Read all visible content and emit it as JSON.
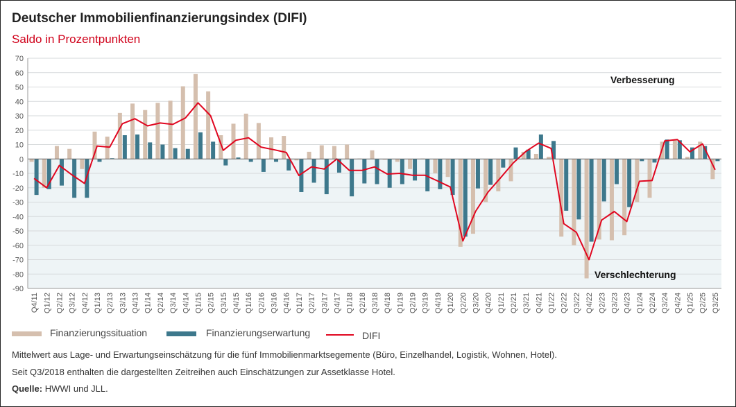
{
  "title": "Deutscher Immobilienfinanzierungsindex (DIFI)",
  "subtitle": "Saldo in Prozentpunkten",
  "colors": {
    "situation": "#d5bfae",
    "erwartung": "#3d788c",
    "difi": "#e0061f",
    "negative_area": "#eef4f6"
  },
  "chart_data": {
    "type": "bar",
    "title": "Deutscher Immobilienfinanzierungsindex (DIFI)",
    "ylabel": "Saldo in Prozentpunkten",
    "ylim": [
      -90,
      70
    ],
    "yticks": [
      70,
      60,
      50,
      40,
      30,
      20,
      10,
      0,
      -10,
      -20,
      -30,
      -40,
      -50,
      -60,
      -70,
      -80,
      -90
    ],
    "grid": true,
    "legend": "bottom",
    "categories": [
      "Q4/11",
      "Q1/12",
      "Q2/12",
      "Q3/12",
      "Q4/12",
      "Q1/13",
      "Q2/13",
      "Q3/13",
      "Q4/13",
      "Q1/14",
      "Q2/14",
      "Q3/14",
      "Q4/14",
      "Q1/15",
      "Q2/15",
      "Q3/15",
      "Q4/15",
      "Q1/16",
      "Q2/16",
      "Q3/16",
      "Q4/16",
      "Q1/17",
      "Q2/17",
      "Q3/17",
      "Q4/17",
      "Q1/18",
      "Q2/18",
      "Q3/18",
      "Q4/18",
      "Q1/19",
      "Q2/19",
      "Q3/19",
      "Q4/19",
      "Q1/20",
      "Q2/20",
      "Q3/20",
      "Q4/20",
      "Q1/21",
      "Q2/21",
      "Q3/21",
      "Q4/21",
      "Q1/22",
      "Q2/22",
      "Q3/22",
      "Q4/22",
      "Q2/23",
      "Q3/23",
      "Q4/23",
      "Q1/24",
      "Q2/24",
      "Q3/24",
      "Q4/24",
      "Q1/25",
      "Q2/25",
      "Q3/25"
    ],
    "series": [
      {
        "name": "Finanzierungssituation",
        "type": "bar",
        "values": [
          -2,
          -20,
          9,
          7,
          -7,
          19,
          15.5,
          32,
          38.5,
          34,
          39,
          40.5,
          50.5,
          59,
          47,
          16.5,
          24.5,
          31.5,
          25,
          15,
          16,
          -1,
          5,
          9.5,
          9,
          10,
          0.3,
          6,
          -0.5,
          -2,
          -7,
          0.3,
          -10,
          -12.5,
          -61,
          -52,
          -30,
          -22.5,
          -15.5,
          5,
          3.5,
          1.5,
          -54,
          -60,
          -83,
          -56,
          -56.5,
          -53,
          -30,
          -27,
          12,
          13,
          1.5,
          12,
          -14
        ]
      },
      {
        "name": "Finanzierungserwartung",
        "type": "bar",
        "values": [
          -25,
          -21,
          -18.5,
          -27,
          -27,
          -2,
          0.5,
          16.5,
          17,
          11.5,
          10,
          7.5,
          7,
          18.5,
          12,
          -4.5,
          1,
          -2,
          -9,
          -2,
          -8,
          -23,
          -16.5,
          -24.5,
          -9.5,
          -26,
          -17,
          -17.5,
          -20,
          -17.5,
          -15,
          -22.5,
          -21,
          -25,
          -54,
          -20.5,
          -18,
          -6,
          8,
          6.5,
          17,
          12.5,
          -36,
          -42,
          -57.5,
          -29.5,
          -17.5,
          -33.5,
          -1.5,
          -2.5,
          13.5,
          13,
          8,
          9,
          -1.5
        ]
      },
      {
        "name": "DIFI",
        "type": "line",
        "values": [
          -13.5,
          -20,
          -4.5,
          -11,
          -17,
          9,
          8.2,
          24.5,
          28,
          23,
          25,
          24,
          28.5,
          39,
          30,
          6,
          13,
          14.7,
          8.2,
          6.5,
          4.5,
          -11.5,
          -5.5,
          -7,
          0,
          -8,
          -8,
          -5.5,
          -10.5,
          -10,
          -11.3,
          -11.3,
          -15.3,
          -19.5,
          -57,
          -36.5,
          -23,
          -13,
          -2.7,
          5.3,
          11,
          7.3,
          -45,
          -51,
          -70,
          -42.5,
          -36.5,
          -43.5,
          -15.5,
          -15,
          12.5,
          13.5,
          5,
          10.5,
          -7.5
        ]
      }
    ],
    "annotations": [
      "Verbesserung",
      "Verschlechterung"
    ]
  },
  "legend": {
    "situation": "Finanzierungssituation",
    "erwartung": "Finanzierungserwartung",
    "difi": "DIFI"
  },
  "footnotes": {
    "line1": "Mittelwert aus Lage- und Erwartungseinschätzung für die fünf Immobilienmarktsegemente (Büro, Einzelhandel, Logistik, Wohnen, Hotel).",
    "line2": "Seit Q3/2018 enthalten die dargestellten Zeitreihen auch Einschätzungen zur Assetklasse Hotel.",
    "source_label": "Quelle:",
    "source": "HWWI und JLL."
  }
}
